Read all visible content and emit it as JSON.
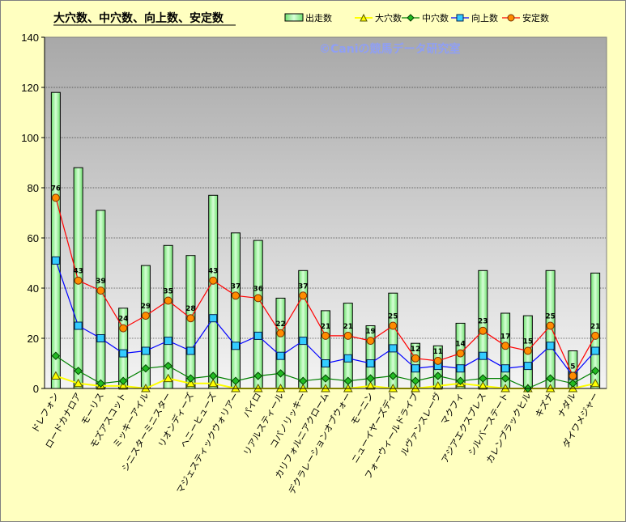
{
  "chart_data": {
    "type": "bar",
    "title": "大穴数、中穴数、向上数、安定数",
    "watermark": "©Caniの競馬データ研究室",
    "ylim": [
      0,
      140
    ],
    "yticks": [
      0,
      20,
      40,
      60,
      80,
      100,
      120,
      140
    ],
    "grid": true,
    "legend_position": "top-right",
    "categories": [
      "ドレフォン",
      "ロードカナロア",
      "モーリス",
      "モズアスコット",
      "ミッキーアイル",
      "シニスターミニスター",
      "リオンディーズ",
      "ヘニーヒューズ",
      "マジェスティックウォリアー",
      "パイロ",
      "リアルスティール",
      "コパノリッキー",
      "カリフォルニアクローム",
      "デクラレーションオブウォー",
      "モーニン",
      "ニューイヤーズデイ",
      "フォーウィールドライブ",
      "ルヴァンスレーヴ",
      "マクフィ",
      "アジアエクスプレス",
      "シルバーステート",
      "カレンブラックヒル",
      "キズナ",
      "ナダル",
      "ダイワメジャー"
    ],
    "series": [
      {
        "name": "出走数",
        "kind": "bar",
        "color": "#90f090",
        "values": [
          118,
          88,
          71,
          32,
          49,
          57,
          53,
          77,
          62,
          59,
          36,
          47,
          31,
          34,
          25,
          38,
          18,
          17,
          26,
          47,
          30,
          29,
          47,
          15,
          46
        ]
      },
      {
        "name": "大穴数",
        "kind": "line",
        "color": "#ffff00",
        "marker": "triangle",
        "values": [
          5,
          2,
          1,
          1,
          0,
          4,
          2,
          2,
          0,
          0,
          0,
          0,
          0,
          0,
          1,
          0,
          0,
          1,
          2,
          1,
          0,
          0,
          0,
          0,
          2
        ]
      },
      {
        "name": "中穴数",
        "kind": "line",
        "color": "#008000",
        "marker": "diamond",
        "values": [
          13,
          7,
          2,
          3,
          8,
          9,
          4,
          5,
          3,
          5,
          6,
          3,
          4,
          3,
          4,
          5,
          3,
          5,
          3,
          4,
          4,
          0,
          4,
          2,
          7
        ]
      },
      {
        "name": "向上数",
        "kind": "line",
        "color": "#0000ff",
        "marker": "square",
        "values": [
          51,
          25,
          20,
          14,
          15,
          19,
          15,
          28,
          17,
          21,
          13,
          19,
          10,
          12,
          10,
          16,
          8,
          9,
          8,
          13,
          8,
          9,
          17,
          5,
          15
        ]
      },
      {
        "name": "安定数",
        "kind": "line",
        "color": "#ff0000",
        "marker": "circle",
        "values": [
          76,
          43,
          39,
          24,
          29,
          35,
          28,
          43,
          37,
          36,
          22,
          37,
          21,
          21,
          19,
          25,
          12,
          11,
          14,
          23,
          17,
          15,
          25,
          5,
          21
        ],
        "labels": true
      }
    ]
  }
}
